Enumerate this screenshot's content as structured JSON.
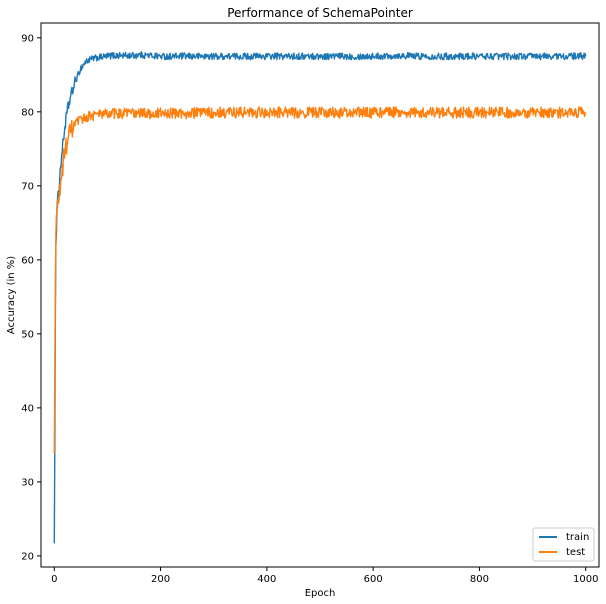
{
  "chart_data": {
    "type": "line",
    "title": "Performance of SchemaPointer",
    "xlabel": "Epoch",
    "ylabel": "Accuracy (in %)",
    "xlim": [
      -25,
      1025
    ],
    "ylim": [
      18.5,
      92
    ],
    "xticks": [
      0,
      200,
      400,
      600,
      800,
      1000
    ],
    "yticks": [
      20,
      30,
      40,
      50,
      60,
      70,
      80,
      90
    ],
    "grid": false,
    "legend": {
      "position": "bottom-right",
      "entries": [
        "train",
        "test"
      ]
    },
    "series": [
      {
        "name": "train",
        "color": "#1f77b4",
        "x": [
          0,
          1,
          2,
          3,
          5,
          7,
          10,
          13,
          16,
          20,
          25,
          30,
          35,
          40,
          45,
          50,
          55,
          60,
          65,
          70,
          80,
          90,
          100,
          110,
          120,
          130,
          150,
          160,
          180,
          200,
          250,
          300,
          350,
          400,
          450,
          500,
          550,
          600,
          650,
          700,
          750,
          800,
          850,
          900,
          950,
          1000
        ],
        "y": [
          21.7,
          35.0,
          52.0,
          62.0,
          66.5,
          68.5,
          71.0,
          73.5,
          75.5,
          78.0,
          80.3,
          81.8,
          83.0,
          84.2,
          85.0,
          85.9,
          86.4,
          86.8,
          87.0,
          87.1,
          87.3,
          87.4,
          87.5,
          87.6,
          87.6,
          87.6,
          87.6,
          87.7,
          87.6,
          87.5,
          87.5,
          87.5,
          87.5,
          87.5,
          87.5,
          87.5,
          87.5,
          87.5,
          87.6,
          87.5,
          87.5,
          87.5,
          87.5,
          87.5,
          87.5,
          87.5
        ]
      },
      {
        "name": "test",
        "color": "#ff7f0e",
        "x": [
          0,
          1,
          2,
          3,
          5,
          7,
          10,
          13,
          16,
          20,
          25,
          30,
          35,
          40,
          45,
          50,
          55,
          60,
          70,
          80,
          90,
          100,
          120,
          150,
          200,
          250,
          300,
          350,
          400,
          450,
          500,
          550,
          600,
          650,
          700,
          750,
          800,
          850,
          900,
          950,
          1000
        ],
        "y": [
          33.8,
          45.0,
          56.0,
          63.5,
          66.5,
          67.5,
          69.0,
          71.0,
          72.5,
          74.8,
          76.2,
          77.2,
          77.8,
          78.3,
          78.6,
          78.9,
          79.1,
          79.3,
          79.5,
          79.6,
          79.7,
          79.7,
          79.8,
          79.8,
          79.8,
          79.8,
          79.9,
          79.9,
          79.9,
          79.9,
          79.9,
          79.9,
          79.9,
          80.0,
          79.9,
          79.9,
          79.9,
          79.9,
          79.9,
          79.9,
          80.0
        ]
      }
    ]
  }
}
